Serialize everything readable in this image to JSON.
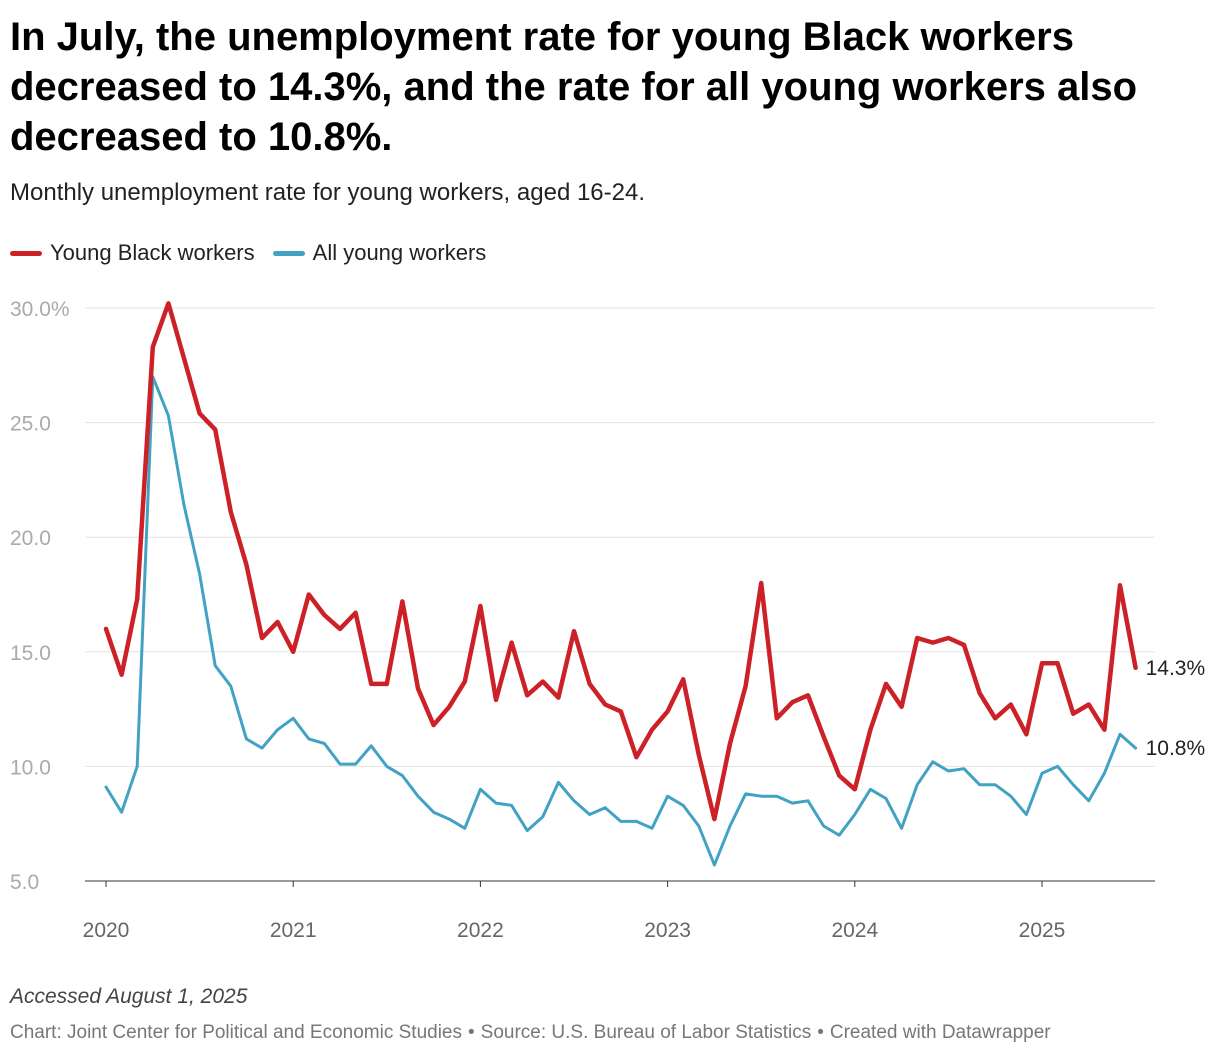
{
  "header": {
    "title": "In July, the unemployment rate for young Black workers decreased to 14.3%, and the rate for all young workers also decreased to 10.8%.",
    "subtitle": "Monthly unemployment rate for young workers, aged 16-24."
  },
  "legend": [
    {
      "label": "Young Black workers",
      "color": "#cc2127"
    },
    {
      "label": "All young workers",
      "color": "#42a2c3"
    }
  ],
  "chart_data": {
    "type": "line",
    "title": "In July, the unemployment rate for young Black workers decreased to 14.3%, and the rate for all young workers also decreased to 10.8%.",
    "subtitle": "Monthly unemployment rate for young workers, aged 16-24.",
    "xlabel": "",
    "ylabel": "",
    "ylim": [
      5,
      30
    ],
    "y_ticks": [
      {
        "value": 30,
        "label": "30.0%"
      },
      {
        "value": 25,
        "label": "25.0"
      },
      {
        "value": 20,
        "label": "20.0"
      },
      {
        "value": 15,
        "label": "15.0"
      },
      {
        "value": 10,
        "label": "10.0"
      },
      {
        "value": 5,
        "label": "5.0"
      }
    ],
    "x_start": {
      "year": 2020,
      "month": 1
    },
    "x_ticks": [
      "2020",
      "2021",
      "2022",
      "2023",
      "2024",
      "2025"
    ],
    "grid": true,
    "legend_position": "top-left",
    "series": [
      {
        "name": "Young Black workers",
        "color": "#cc2127",
        "end_label": "14.3%",
        "values": [
          16.0,
          14.0,
          17.3,
          28.3,
          30.2,
          27.8,
          25.4,
          24.7,
          21.1,
          18.8,
          15.6,
          16.3,
          15.0,
          17.5,
          16.6,
          16.0,
          16.7,
          13.6,
          13.6,
          17.2,
          13.4,
          11.8,
          12.6,
          13.7,
          17.0,
          12.9,
          15.4,
          13.1,
          13.7,
          13.0,
          15.9,
          13.6,
          12.7,
          12.4,
          10.4,
          11.6,
          12.4,
          13.8,
          10.5,
          7.7,
          11.0,
          13.5,
          18.0,
          12.1,
          12.8,
          13.1,
          11.3,
          9.6,
          9.0,
          11.6,
          13.6,
          12.6,
          15.6,
          15.4,
          15.6,
          15.3,
          13.2,
          12.1,
          12.7,
          11.4,
          14.5,
          14.5,
          12.3,
          12.7,
          11.6,
          17.9,
          14.3
        ]
      },
      {
        "name": "All young workers",
        "color": "#42a2c3",
        "end_label": "10.8%",
        "values": [
          9.1,
          8.0,
          10.0,
          27.0,
          25.3,
          21.4,
          18.4,
          14.4,
          13.5,
          11.2,
          10.8,
          11.6,
          12.1,
          11.2,
          11.0,
          10.1,
          10.1,
          10.9,
          10.0,
          9.6,
          8.7,
          8.0,
          7.7,
          7.3,
          9.0,
          8.4,
          8.3,
          7.2,
          7.8,
          9.3,
          8.5,
          7.9,
          8.2,
          7.6,
          7.6,
          7.3,
          8.7,
          8.3,
          7.4,
          5.7,
          7.4,
          8.8,
          8.7,
          8.7,
          8.4,
          8.5,
          7.4,
          7.0,
          7.9,
          9.0,
          8.6,
          7.3,
          9.2,
          10.2,
          9.8,
          9.9,
          9.2,
          9.2,
          8.7,
          7.9,
          9.7,
          10.0,
          9.2,
          8.5,
          9.7,
          11.4,
          10.8
        ]
      }
    ]
  },
  "footer": {
    "note": "Accessed August 1, 2025",
    "credit": "Chart: Joint Center for Political and Economic Studies",
    "source": "Source: U.S. Bureau of Labor Statistics",
    "created": "Created with Datawrapper",
    "separator": "•"
  }
}
